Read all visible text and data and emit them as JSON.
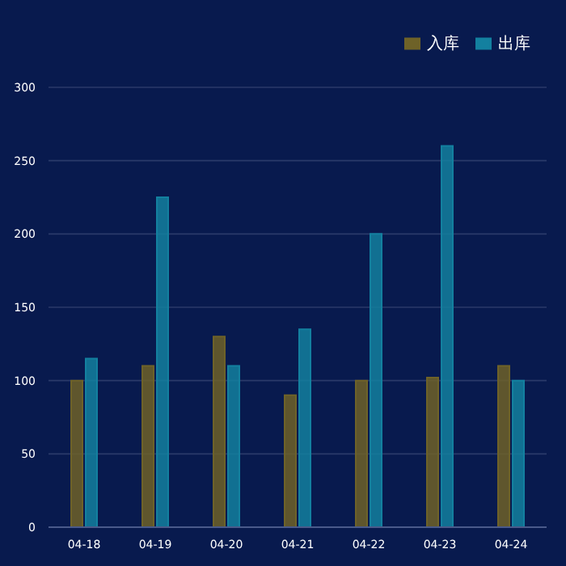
{
  "chart_data": {
    "type": "bar",
    "categories": [
      "04-18",
      "04-19",
      "04-20",
      "04-21",
      "04-22",
      "04-23",
      "04-24"
    ],
    "series": [
      {
        "name": "入库",
        "color": "#6e6228",
        "values": [
          100,
          110,
          130,
          90,
          100,
          102,
          110
        ]
      },
      {
        "name": "出库",
        "color": "#13809f",
        "values": [
          115,
          225,
          110,
          135,
          200,
          260,
          100
        ]
      }
    ],
    "ylim": [
      0,
      300
    ],
    "yticks": [
      0,
      50,
      100,
      150,
      200,
      250,
      300
    ],
    "grid": "y",
    "legend": "top right"
  }
}
